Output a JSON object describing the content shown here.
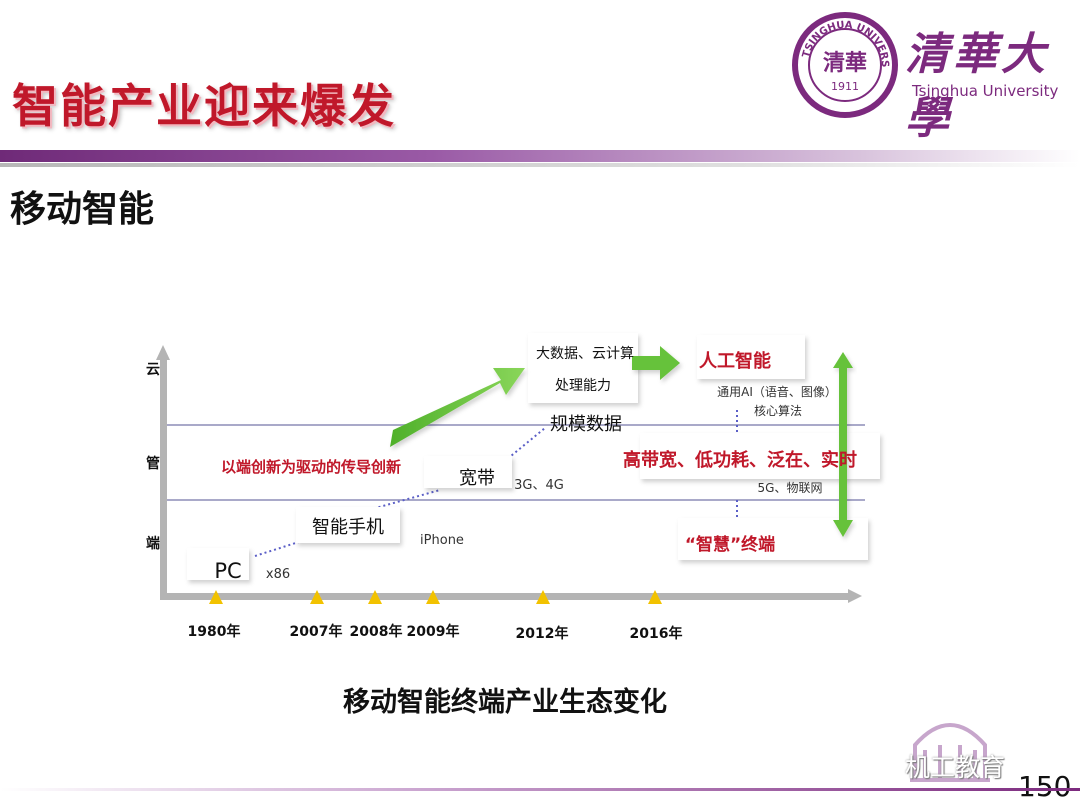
{
  "slide": {
    "title": "智能产业迎来爆发",
    "subtitle": "移动智能",
    "caption": "移动智能终端产业生态变化",
    "page_number": "150",
    "watermark": "机工教育"
  },
  "logo": {
    "cn": "清華大學",
    "en": "Tsinghua University",
    "seal_text": "TSINGHUA UNIVERSITY",
    "seal_year": "1911",
    "seal_center": "清華"
  },
  "diagram": {
    "y_axis_labels": [
      "云",
      "管",
      "端"
    ],
    "timeline": [
      "1980年",
      "2007年",
      "2008年",
      "2009年",
      "2012年",
      "2016年"
    ],
    "boxes": {
      "pc": "PC",
      "smartphone": "智能手机",
      "broadband": "宽带",
      "bigdata_line1": "大数据、云计算",
      "bigdata_line2": "处理能力",
      "ai": "人工智能",
      "highband": "高带宽、低功耗、泛在、实时",
      "smart_terminal": "“智慧”终端"
    },
    "labels": {
      "x86": "x86",
      "iphone": "iPhone",
      "g34": "3G、4G",
      "scale_data": "规模数据",
      "ai_sub1": "通用AI（语音、图像）",
      "ai_sub2": "核心算法",
      "g5": "5G、物联网",
      "innovation": "以端创新为驱动的传导创新"
    },
    "colors": {
      "accent_red": "#c0182a",
      "arrow_green": "#66c23a",
      "axis_gray": "#b4b4b4",
      "connector_blue": "#5b5fc7",
      "marker_yellow": "#f2c200"
    }
  }
}
